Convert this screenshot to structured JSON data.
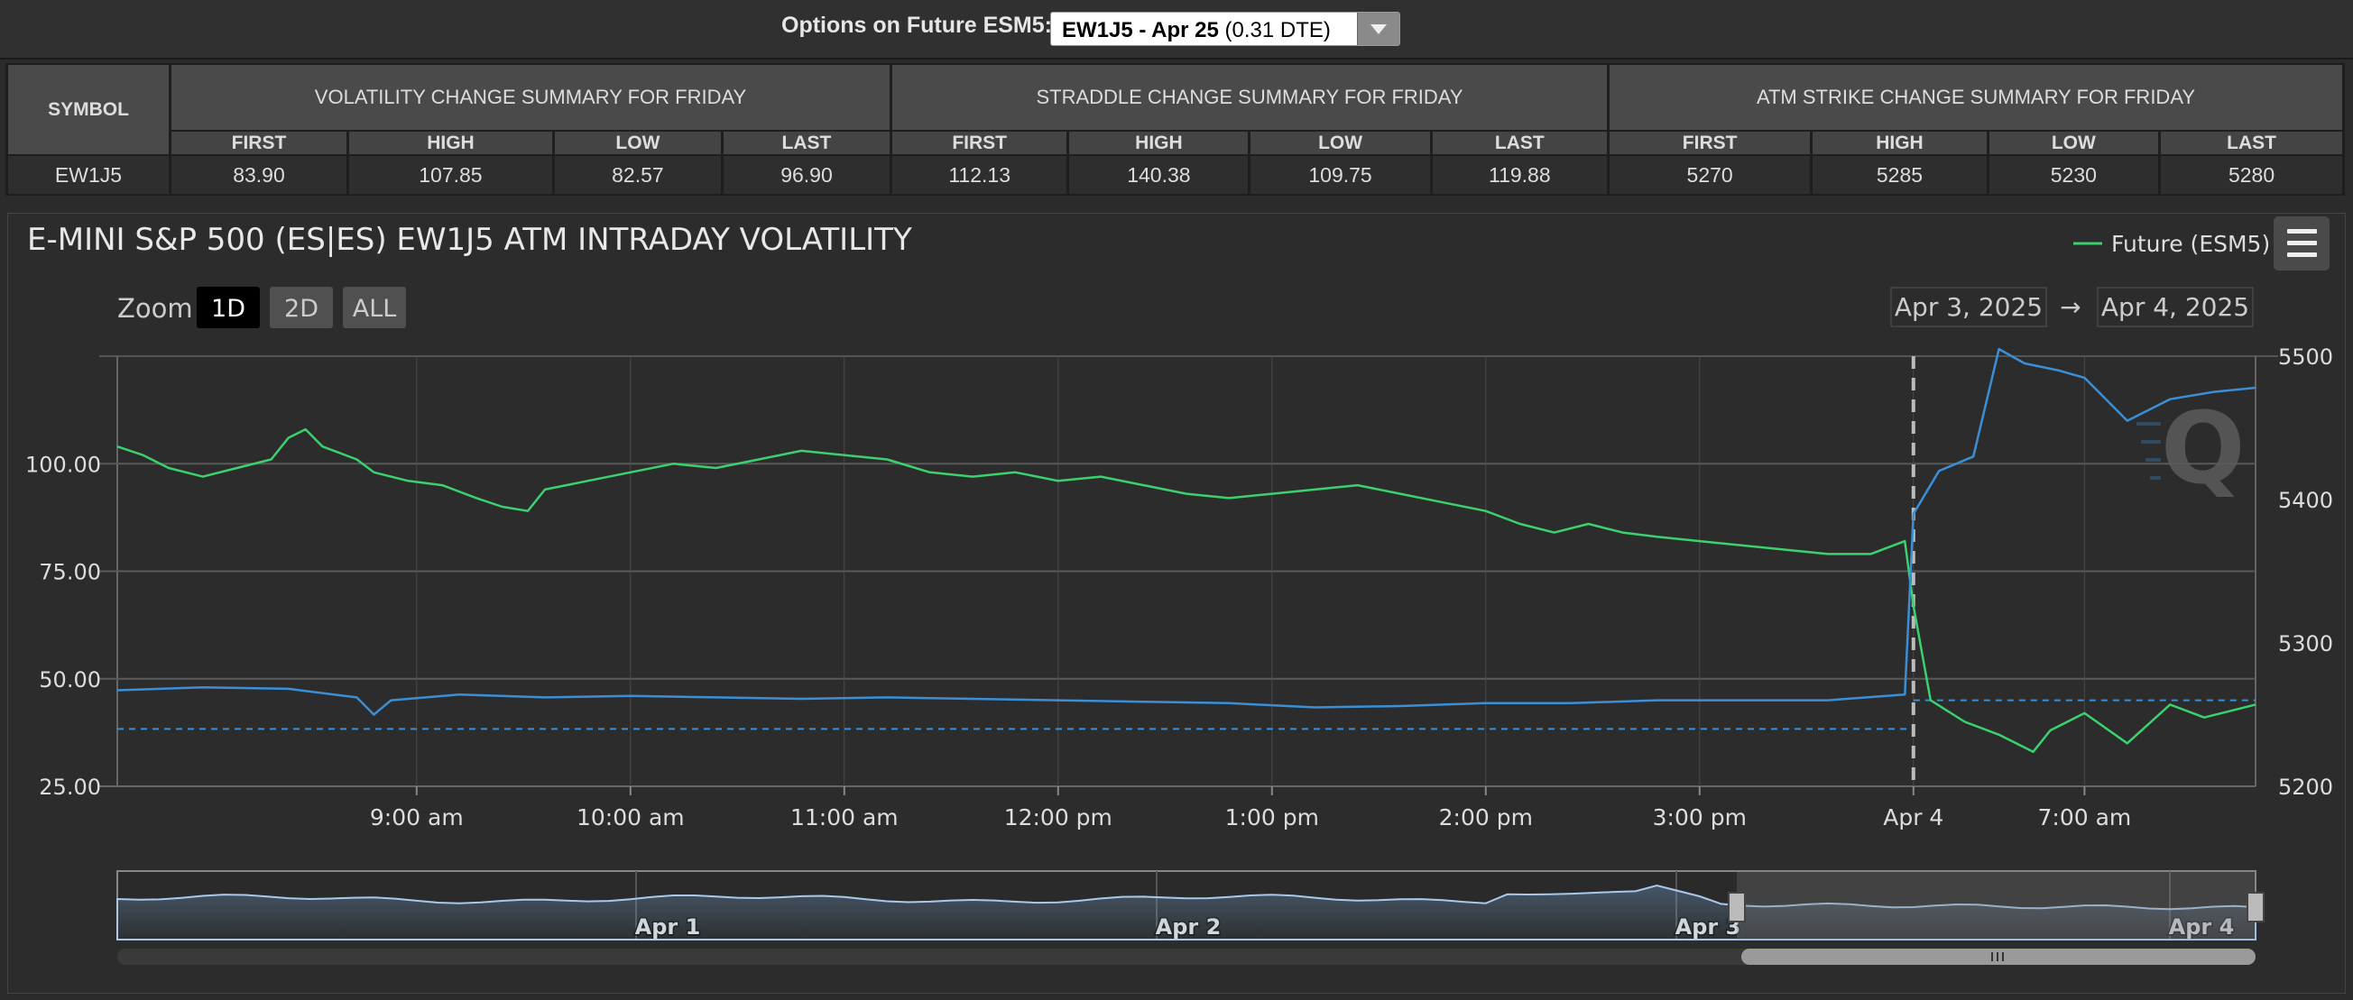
{
  "topbar": {
    "label": "Options on Future ESM5:",
    "select_bold": "EW1J5 - Apr 25",
    "select_rest": " (0.31 DTE)"
  },
  "summary": {
    "symbol_header": "SYMBOL",
    "symbol": "EW1J5",
    "groups": [
      {
        "title": "VOLATILITY CHANGE SUMMARY FOR FRIDAY",
        "cols": [
          "FIRST",
          "HIGH",
          "LOW",
          "LAST"
        ],
        "values": [
          "83.90",
          "107.85",
          "82.57",
          "96.90"
        ]
      },
      {
        "title": "STRADDLE CHANGE SUMMARY FOR FRIDAY",
        "cols": [
          "FIRST",
          "HIGH",
          "LOW",
          "LAST"
        ],
        "values": [
          "112.13",
          "140.38",
          "109.75",
          "119.88"
        ]
      },
      {
        "title": "ATM STRIKE CHANGE SUMMARY FOR FRIDAY",
        "cols": [
          "FIRST",
          "HIGH",
          "LOW",
          "LAST"
        ],
        "values": [
          "5270",
          "5285",
          "5230",
          "5280"
        ]
      }
    ]
  },
  "chart_data": {
    "type": "line",
    "title": "E-MINI S&P 500 (ES|ES) EW1J5 ATM INTRADAY VOLATILITY",
    "zoom": {
      "label": "Zoom",
      "options": [
        "1D",
        "2D",
        "ALL"
      ],
      "selected": "1D"
    },
    "range": {
      "from": "Apr 3, 2025",
      "arrow": "→",
      "to": "Apr 4, 2025"
    },
    "legend": {
      "position": "top-right",
      "entries": [
        {
          "name": "Future (ESM5)",
          "color": "#3bd16f"
        }
      ]
    },
    "x_ticks": [
      "9:00 am",
      "10:00 am",
      "11:00 am",
      "12:00 pm",
      "1:00 pm",
      "2:00 pm",
      "3:00 pm",
      "Apr 4",
      "7:00 am"
    ],
    "y_left": {
      "ticks": [
        "25.00",
        "50.00",
        "75.00",
        "100.00"
      ],
      "range": [
        25,
        125
      ]
    },
    "y_right": {
      "ticks": [
        "5200",
        "5300",
        "5400",
        "5500"
      ],
      "range": [
        5200,
        5500
      ]
    },
    "colors": {
      "future": "#3bd16f",
      "vol": "#3b8fd6",
      "grid": "#5a5a5a",
      "axis": "#888888"
    },
    "series": [
      {
        "name": "Future (ESM5)",
        "axis": "left",
        "color": "#3bd16f",
        "points": [
          [
            0,
            104
          ],
          [
            0.3,
            102
          ],
          [
            0.6,
            99
          ],
          [
            1,
            97
          ],
          [
            1.4,
            99
          ],
          [
            1.8,
            101
          ],
          [
            2,
            106
          ],
          [
            2.2,
            108
          ],
          [
            2.4,
            104
          ],
          [
            2.8,
            101
          ],
          [
            3,
            98
          ],
          [
            3.4,
            96
          ],
          [
            3.8,
            95
          ],
          [
            4.2,
            92
          ],
          [
            4.5,
            90
          ],
          [
            4.8,
            89
          ],
          [
            5,
            94
          ],
          [
            5.5,
            96
          ],
          [
            6,
            98
          ],
          [
            6.5,
            100
          ],
          [
            7,
            99
          ],
          [
            7.5,
            101
          ],
          [
            8,
            103
          ],
          [
            8.5,
            102
          ],
          [
            9,
            101
          ],
          [
            9.5,
            98
          ],
          [
            10,
            97
          ],
          [
            10.5,
            98
          ],
          [
            11,
            96
          ],
          [
            11.5,
            97
          ],
          [
            12,
            95
          ],
          [
            12.5,
            93
          ],
          [
            13,
            92
          ],
          [
            13.5,
            93
          ],
          [
            14,
            94
          ],
          [
            14.5,
            95
          ],
          [
            15,
            93
          ],
          [
            15.5,
            91
          ],
          [
            16,
            89
          ],
          [
            16.4,
            86
          ],
          [
            16.8,
            84
          ],
          [
            17.2,
            86
          ],
          [
            17.6,
            84
          ],
          [
            18,
            83
          ],
          [
            18.5,
            82
          ],
          [
            19,
            81
          ],
          [
            19.5,
            80
          ],
          [
            20,
            79
          ],
          [
            20.5,
            79
          ],
          [
            20.9,
            82
          ],
          [
            21,
            67
          ],
          [
            21.2,
            45
          ],
          [
            21.6,
            40
          ],
          [
            22,
            37
          ],
          [
            22.4,
            33
          ],
          [
            22.6,
            38
          ],
          [
            23,
            42
          ],
          [
            23.5,
            35
          ],
          [
            24,
            44
          ],
          [
            24.4,
            41
          ],
          [
            25,
            44
          ]
        ]
      },
      {
        "name": "Future",
        "axis": "right",
        "color": "#3b8fd6",
        "points": [
          [
            0,
            5267
          ],
          [
            1,
            5269
          ],
          [
            2,
            5268
          ],
          [
            2.8,
            5262
          ],
          [
            3,
            5250
          ],
          [
            3.2,
            5260
          ],
          [
            4,
            5264
          ],
          [
            5,
            5262
          ],
          [
            6,
            5263
          ],
          [
            7,
            5262
          ],
          [
            8,
            5261
          ],
          [
            9,
            5262
          ],
          [
            10,
            5261
          ],
          [
            11,
            5260
          ],
          [
            12,
            5259
          ],
          [
            13,
            5258
          ],
          [
            14,
            5255
          ],
          [
            15,
            5256
          ],
          [
            16,
            5258
          ],
          [
            17,
            5258
          ],
          [
            18,
            5260
          ],
          [
            19,
            5260
          ],
          [
            20,
            5260
          ],
          [
            20.9,
            5264
          ],
          [
            21,
            5390
          ],
          [
            21.3,
            5420
          ],
          [
            21.7,
            5430
          ],
          [
            22,
            5505
          ],
          [
            22.3,
            5495
          ],
          [
            22.7,
            5490
          ],
          [
            23,
            5485
          ],
          [
            23.5,
            5455
          ],
          [
            24,
            5470
          ],
          [
            24.5,
            5475
          ],
          [
            25,
            5478
          ]
        ]
      }
    ],
    "ref_lines": [
      {
        "axis": "right",
        "from": 0,
        "to": 21,
        "value": 5240
      },
      {
        "axis": "right",
        "from": 21,
        "to": 25,
        "value": 5260
      }
    ],
    "day_break_x": 21,
    "navigator": {
      "labels": [
        "Apr 1",
        "Apr 2",
        "Apr 3",
        "Apr 4"
      ]
    }
  }
}
